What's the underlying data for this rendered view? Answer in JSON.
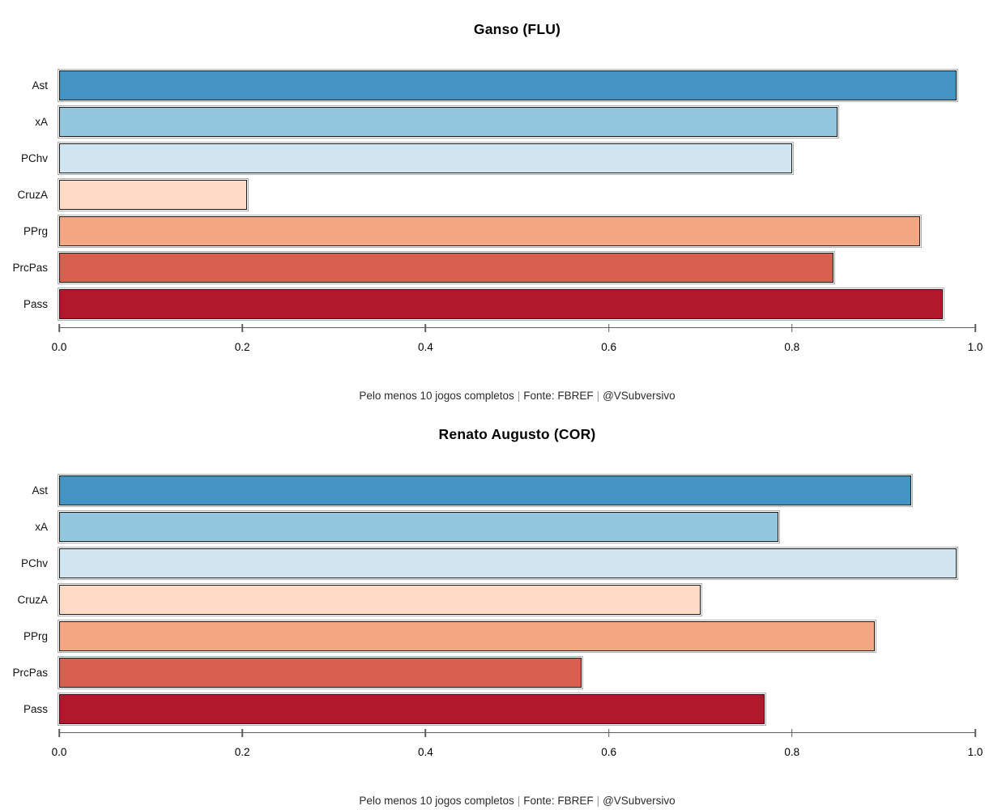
{
  "page": {
    "background": "#ffffff"
  },
  "axis": {
    "tick_labels": [
      "0.0",
      "0.2",
      "0.4",
      "0.6",
      "0.8",
      "1.0"
    ],
    "line_color": "#5e5e5e"
  },
  "captions": {
    "parts": [
      "Pelo menos 10 jogos completos",
      "Fonte: FBREF",
      "@VSubversivo"
    ],
    "separator": "|"
  },
  "palette": {
    "ast": "#4393C3",
    "xa": "#92C5DE",
    "pchv": "#D1E5F0",
    "cruza": "#FDDBC7",
    "pprg": "#F4A582",
    "prcpas": "#D6604D",
    "pass": "#B2182B",
    "bar_border": "#1a1a1a"
  },
  "chart_data": [
    {
      "type": "bar",
      "orientation": "horizontal",
      "title": "Ganso (FLU)",
      "categories": [
        "Ast",
        "xA",
        "PChv",
        "CruzA",
        "PPrg",
        "PrcPas",
        "Pass"
      ],
      "values": [
        0.98,
        0.85,
        0.8,
        0.205,
        0.94,
        0.845,
        0.965
      ],
      "bar_colors": [
        "#4393C3",
        "#92C5DE",
        "#D1E5F0",
        "#FDDBC7",
        "#F4A582",
        "#D6604D",
        "#B2182B"
      ],
      "xlim": [
        0,
        1
      ],
      "xticks": [
        0,
        0.2,
        0.4,
        0.6,
        0.8,
        1.0
      ],
      "grid": false,
      "legend": "none",
      "caption": "Pelo menos 10 jogos completos | Fonte: FBREF | @VSubversivo"
    },
    {
      "type": "bar",
      "orientation": "horizontal",
      "title": "Renato Augusto (COR)",
      "categories": [
        "Ast",
        "xA",
        "PChv",
        "CruzA",
        "PPrg",
        "PrcPas",
        "Pass"
      ],
      "values": [
        0.93,
        0.785,
        0.98,
        0.7,
        0.89,
        0.57,
        0.77
      ],
      "bar_colors": [
        "#4393C3",
        "#92C5DE",
        "#D1E5F0",
        "#FDDBC7",
        "#F4A582",
        "#D6604D",
        "#B2182B"
      ],
      "xlim": [
        0,
        1
      ],
      "xticks": [
        0,
        0.2,
        0.4,
        0.6,
        0.8,
        1.0
      ],
      "grid": false,
      "legend": "none",
      "caption": "Pelo menos 10 jogos completos | Fonte: FBREF | @VSubversivo"
    }
  ]
}
